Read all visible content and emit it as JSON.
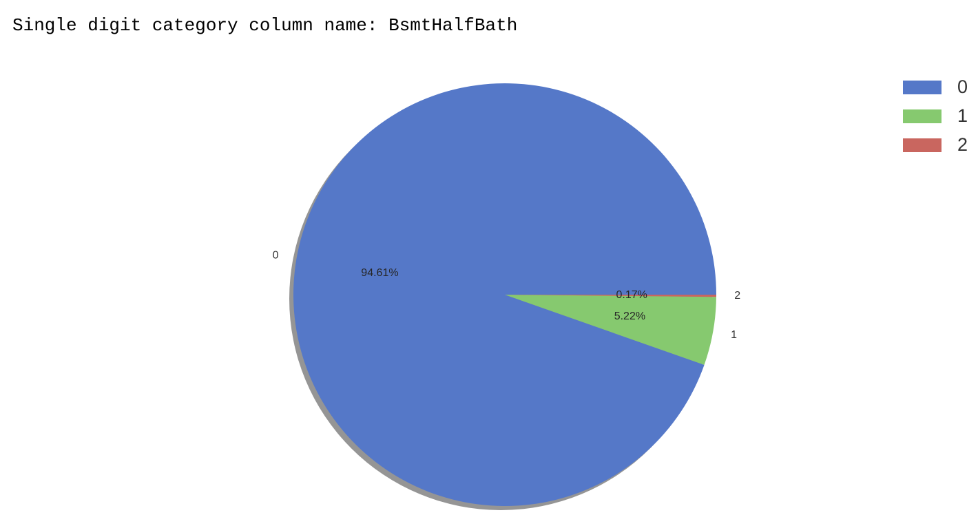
{
  "header": {
    "text": "Single digit category column name: BsmtHalfBath"
  },
  "chart_data": {
    "type": "pie",
    "categories": [
      "0",
      "1",
      "2"
    ],
    "values": [
      94.61,
      5.22,
      0.17
    ],
    "percent_labels": [
      "94.61%",
      "5.22%",
      "0.17%"
    ],
    "colors": [
      "#5578c8",
      "#86c96f",
      "#c9665f"
    ],
    "shadow": true,
    "start_angle_deg": 0,
    "direction": "counterclockwise",
    "legend": {
      "placement": "top-right",
      "entries": [
        "0",
        "1",
        "2"
      ]
    }
  }
}
